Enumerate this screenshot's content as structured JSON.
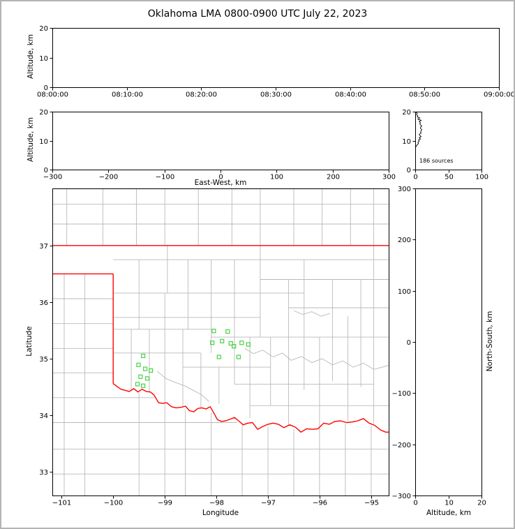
{
  "title": "Oklahoma LMA 0800-0900 UTC July 22, 2023",
  "colors": {
    "axis": "#000000",
    "page_border": "#b4b4b4",
    "county": "#b9b9b9",
    "river": "#b9b9b9",
    "state_border": "#ff0000",
    "station_marker": "#44d444",
    "histogram_trace": "#000000"
  },
  "chart_data": [
    {
      "panel": "time_height",
      "type": "scatter",
      "ylabel": "Altitude, km",
      "ylim": [
        0,
        20
      ],
      "yticks": [
        0,
        10,
        20
      ],
      "xtick_labels": [
        "08:00:00",
        "08:10:00",
        "08:20:00",
        "08:30:00",
        "08:40:00",
        "08:50:00",
        "09:00:00"
      ],
      "points": []
    },
    {
      "panel": "ew_height",
      "type": "scatter",
      "xlabel": "East-West, km",
      "ylabel": "Altitude, km",
      "xlim": [
        -300,
        300
      ],
      "ylim": [
        0,
        20
      ],
      "xticks": [
        -300,
        -200,
        -100,
        0,
        100,
        200,
        300
      ],
      "yticks": [
        0,
        10,
        20
      ],
      "points": []
    },
    {
      "panel": "source_histogram",
      "type": "line",
      "label": "186 sources",
      "xlim": [
        0,
        100
      ],
      "ylim": [
        0,
        20
      ],
      "xticks": [
        0,
        50,
        100
      ],
      "yticks": [
        0,
        10,
        20
      ],
      "altitude_km": [
        19.8,
        19.4,
        19.0,
        18.6,
        18.2,
        17.8,
        17.4,
        17.0,
        16.6,
        16.2,
        15.8,
        15.4,
        15.0,
        14.6,
        14.2,
        13.8,
        13.4,
        13.0,
        12.6,
        12.2,
        11.8,
        11.4,
        11.0,
        10.6,
        10.2,
        9.8,
        9.4,
        9.0,
        8.6,
        8.2,
        7.8
      ],
      "counts": [
        1,
        3,
        2,
        4,
        3,
        7,
        4,
        9,
        6,
        8,
        7,
        8,
        10,
        8,
        8,
        10,
        9,
        8,
        9,
        6,
        7,
        9,
        6,
        8,
        5,
        6,
        4,
        5,
        3,
        2,
        1
      ]
    },
    {
      "panel": "plan_view",
      "type": "map-scatter",
      "xlabel": "Longitude",
      "ylabel": "Latitude",
      "xlim": [
        -101.18,
        -94.66
      ],
      "ylim": [
        32.58,
        38.01
      ],
      "xticks": [
        -101,
        -100,
        -99,
        -98,
        -97,
        -96,
        -95
      ],
      "yticks": [
        33,
        34,
        35,
        36,
        37
      ],
      "stations": [
        [
          -99.42,
          35.05
        ],
        [
          -99.51,
          34.89
        ],
        [
          -99.38,
          34.82
        ],
        [
          -99.27,
          34.79
        ],
        [
          -99.47,
          34.68
        ],
        [
          -99.34,
          34.65
        ],
        [
          -99.53,
          34.55
        ],
        [
          -99.42,
          34.52
        ],
        [
          -98.05,
          35.49
        ],
        [
          -97.78,
          35.48
        ],
        [
          -98.08,
          35.28
        ],
        [
          -97.89,
          35.31
        ],
        [
          -97.72,
          35.27
        ],
        [
          -97.66,
          35.22
        ],
        [
          -97.51,
          35.28
        ],
        [
          -97.38,
          35.25
        ],
        [
          -97.95,
          35.03
        ],
        [
          -97.57,
          35.03
        ]
      ],
      "state_border": {
        "north": [
          [
            -101.18,
            37.0
          ],
          [
            -94.66,
            37.0
          ]
        ],
        "panhandle_south": [
          [
            -101.18,
            36.5
          ],
          [
            -100.0,
            36.5
          ]
        ],
        "west": [
          [
            -100.0,
            36.5
          ],
          [
            -100.0,
            34.56
          ]
        ],
        "red_river": [
          [
            -100.0,
            34.56
          ],
          [
            -99.93,
            34.51
          ],
          [
            -99.85,
            34.46
          ],
          [
            -99.77,
            34.44
          ],
          [
            -99.69,
            34.42
          ],
          [
            -99.6,
            34.47
          ],
          [
            -99.52,
            34.41
          ],
          [
            -99.44,
            34.46
          ],
          [
            -99.36,
            34.42
          ],
          [
            -99.28,
            34.41
          ],
          [
            -99.21,
            34.36
          ],
          [
            -99.12,
            34.22
          ],
          [
            -99.04,
            34.21
          ],
          [
            -98.96,
            34.22
          ],
          [
            -98.87,
            34.15
          ],
          [
            -98.78,
            34.13
          ],
          [
            -98.68,
            34.14
          ],
          [
            -98.6,
            34.16
          ],
          [
            -98.52,
            34.08
          ],
          [
            -98.44,
            34.06
          ],
          [
            -98.36,
            34.12
          ],
          [
            -98.28,
            34.13
          ],
          [
            -98.2,
            34.11
          ],
          [
            -98.12,
            34.15
          ],
          [
            -98.05,
            34.04
          ],
          [
            -97.98,
            33.92
          ],
          [
            -97.9,
            33.89
          ],
          [
            -97.82,
            33.9
          ],
          [
            -97.73,
            33.93
          ],
          [
            -97.65,
            33.96
          ],
          [
            -97.57,
            33.9
          ],
          [
            -97.48,
            33.83
          ],
          [
            -97.39,
            33.86
          ],
          [
            -97.3,
            33.87
          ],
          [
            -97.2,
            33.75
          ],
          [
            -97.1,
            33.8
          ],
          [
            -97.0,
            33.84
          ],
          [
            -96.9,
            33.86
          ],
          [
            -96.8,
            33.84
          ],
          [
            -96.69,
            33.78
          ],
          [
            -96.58,
            33.83
          ],
          [
            -96.47,
            33.79
          ],
          [
            -96.36,
            33.7
          ],
          [
            -96.25,
            33.76
          ],
          [
            -96.14,
            33.75
          ],
          [
            -96.03,
            33.76
          ],
          [
            -95.92,
            33.86
          ],
          [
            -95.81,
            33.84
          ],
          [
            -95.7,
            33.89
          ],
          [
            -95.59,
            33.9
          ],
          [
            -95.48,
            33.87
          ],
          [
            -95.37,
            33.88
          ],
          [
            -95.26,
            33.9
          ],
          [
            -95.15,
            33.94
          ],
          [
            -95.04,
            33.86
          ],
          [
            -94.93,
            33.82
          ],
          [
            -94.82,
            33.74
          ],
          [
            -94.72,
            33.7
          ],
          [
            -94.66,
            33.7
          ]
        ]
      },
      "county_segments": [
        [
          -100.9,
          37.0,
          -100.9,
          38.01
        ],
        [
          -100.2,
          37.0,
          -100.2,
          38.01
        ],
        [
          -99.55,
          37.0,
          -99.55,
          38.01
        ],
        [
          -99.0,
          37.0,
          -99.0,
          38.01
        ],
        [
          -98.35,
          37.0,
          -98.35,
          38.01
        ],
        [
          -97.7,
          37.0,
          -97.7,
          38.01
        ],
        [
          -97.15,
          37.0,
          -97.15,
          38.01
        ],
        [
          -96.5,
          37.0,
          -96.5,
          38.01
        ],
        [
          -95.95,
          37.0,
          -95.95,
          38.01
        ],
        [
          -95.4,
          37.0,
          -95.4,
          38.01
        ],
        [
          -101.18,
          37.38,
          -94.66,
          37.38
        ],
        [
          -101.18,
          37.73,
          -94.66,
          37.73
        ],
        [
          -100.95,
          32.58,
          -100.95,
          36.5
        ],
        [
          -100.55,
          32.58,
          -100.55,
          36.5
        ],
        [
          -101.18,
          36.06,
          -100.0,
          36.06
        ],
        [
          -101.18,
          35.62,
          -100.0,
          35.62
        ],
        [
          -101.18,
          35.18,
          -100.0,
          35.18
        ],
        [
          -101.18,
          34.75,
          -100.0,
          34.75
        ],
        [
          -101.18,
          34.31,
          -99.2,
          34.31
        ],
        [
          -101.18,
          33.87,
          -97.6,
          33.87
        ],
        [
          -101.18,
          33.4,
          -94.66,
          33.4
        ],
        [
          -101.18,
          32.96,
          -94.66,
          32.96
        ],
        [
          -99.5,
          32.58,
          -99.5,
          34.4
        ],
        [
          -99.0,
          32.58,
          -99.0,
          34.2
        ],
        [
          -98.6,
          32.58,
          -98.6,
          34.08
        ],
        [
          -98.1,
          32.58,
          -98.1,
          34.05
        ],
        [
          -97.5,
          32.58,
          -97.5,
          33.83
        ],
        [
          -97.0,
          32.58,
          -97.0,
          33.8
        ],
        [
          -96.5,
          32.58,
          -96.5,
          33.76
        ],
        [
          -96.0,
          32.58,
          -96.0,
          35.38
        ],
        [
          -95.5,
          32.58,
          -95.5,
          33.85
        ],
        [
          -95.0,
          32.58,
          -95.0,
          33.8
        ],
        [
          -99.65,
          34.45,
          -99.65,
          35.52
        ],
        [
          -99.3,
          34.4,
          -99.3,
          35.52
        ],
        [
          -99.5,
          35.52,
          -99.5,
          36.75
        ],
        [
          -99.0,
          34.21,
          -99.0,
          36.16
        ],
        [
          -98.95,
          36.16,
          -98.95,
          37.0
        ],
        [
          -98.65,
          34.15,
          -98.65,
          35.52
        ],
        [
          -98.55,
          35.52,
          -98.55,
          36.75
        ],
        [
          -98.3,
          34.12,
          -98.3,
          35.1
        ],
        [
          -98.1,
          35.1,
          -98.1,
          36.75
        ],
        [
          -97.95,
          34.2,
          -97.95,
          34.85
        ],
        [
          -97.65,
          34.55,
          -97.65,
          36.75
        ],
        [
          -97.35,
          33.95,
          -97.35,
          35.38
        ],
        [
          -97.15,
          35.38,
          -97.15,
          37.0
        ],
        [
          -96.95,
          34.17,
          -96.95,
          35.38
        ],
        [
          -96.6,
          33.82,
          -96.6,
          36.4
        ],
        [
          -96.3,
          34.45,
          -96.3,
          36.75
        ],
        [
          -95.75,
          34.6,
          -95.75,
          36.4
        ],
        [
          -95.45,
          33.9,
          -95.45,
          35.75
        ],
        [
          -95.2,
          34.5,
          -95.2,
          36.4
        ],
        [
          -94.95,
          33.85,
          -94.95,
          38.01
        ],
        [
          -100.0,
          36.75,
          -94.66,
          36.75
        ],
        [
          -100.0,
          36.16,
          -96.3,
          36.16
        ],
        [
          -97.15,
          36.4,
          -94.66,
          36.4
        ],
        [
          -100.0,
          35.73,
          -97.15,
          35.73
        ],
        [
          -96.6,
          35.9,
          -94.66,
          35.9
        ],
        [
          -100.0,
          35.52,
          -98.1,
          35.52
        ],
        [
          -98.1,
          35.38,
          -94.66,
          35.38
        ],
        [
          -100.0,
          35.1,
          -98.3,
          35.1
        ],
        [
          -98.65,
          34.85,
          -96.95,
          34.85
        ],
        [
          -97.65,
          34.55,
          -94.95,
          34.55
        ],
        [
          -97.35,
          34.17,
          -94.66,
          34.17
        ]
      ],
      "rivers": [
        [
          [
            -97.45,
            35.18
          ],
          [
            -97.28,
            35.09
          ],
          [
            -97.1,
            35.15
          ],
          [
            -96.9,
            35.03
          ],
          [
            -96.72,
            35.1
          ],
          [
            -96.55,
            34.97
          ],
          [
            -96.35,
            35.04
          ],
          [
            -96.15,
            34.93
          ],
          [
            -95.95,
            35.0
          ],
          [
            -95.75,
            34.89
          ],
          [
            -95.55,
            34.96
          ],
          [
            -95.35,
            34.85
          ],
          [
            -95.15,
            34.92
          ],
          [
            -94.95,
            34.81
          ],
          [
            -94.66,
            34.88
          ]
        ],
        [
          [
            -99.15,
            34.78
          ],
          [
            -98.98,
            34.65
          ],
          [
            -98.8,
            34.58
          ],
          [
            -98.62,
            34.52
          ],
          [
            -98.45,
            34.44
          ],
          [
            -98.3,
            34.37
          ],
          [
            -98.14,
            34.24
          ]
        ],
        [
          [
            -96.5,
            35.85
          ],
          [
            -96.33,
            35.78
          ],
          [
            -96.15,
            35.83
          ],
          [
            -95.97,
            35.75
          ],
          [
            -95.8,
            35.8
          ]
        ]
      ]
    },
    {
      "panel": "ns_height",
      "type": "scatter",
      "xlabel": "Altitude, km",
      "ylabel": "North-South, km",
      "xlim": [
        0,
        20
      ],
      "ylim": [
        -300,
        300
      ],
      "xticks": [
        0,
        10,
        20
      ],
      "yticks": [
        300,
        200,
        100,
        0,
        -100,
        -200,
        -300
      ],
      "points": []
    }
  ]
}
